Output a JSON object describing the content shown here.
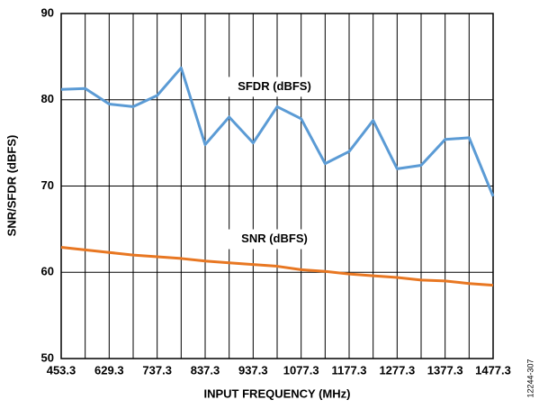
{
  "chart_data": {
    "type": "line",
    "x_label": "INPUT FREQUENCY (MHz)",
    "y_label": "SNR/SFDR (dBFS)",
    "figure_id": "12244-307",
    "categories": [
      "453.3",
      null,
      "629.3",
      null,
      "737.3",
      null,
      "837.3",
      null,
      "937.3",
      null,
      "1077.3",
      null,
      "1177.3",
      null,
      "1277.3",
      null,
      "1377.3",
      null,
      "1477.3"
    ],
    "series": [
      {
        "name": "SFDR (dBFS)",
        "color": "#5b9bd5",
        "values": [
          81.2,
          81.3,
          79.5,
          79.2,
          80.5,
          83.7,
          74.8,
          78.0,
          75.0,
          79.2,
          77.8,
          72.6,
          74.0,
          77.6,
          72.0,
          72.4,
          75.4,
          75.6,
          68.8
        ]
      },
      {
        "name": "SNR (dBFS)",
        "color": "#e87722",
        "values": [
          62.9,
          62.6,
          62.3,
          62.0,
          61.8,
          61.6,
          61.3,
          61.1,
          60.9,
          60.7,
          60.3,
          60.1,
          59.8,
          59.6,
          59.4,
          59.1,
          59.0,
          58.7,
          58.5
        ]
      }
    ],
    "label_positions": [
      {
        "series": 0,
        "index": 9
      },
      {
        "series": 1,
        "index": 9
      }
    ],
    "ylim": [
      50,
      90
    ],
    "yticks": [
      50,
      60,
      70,
      80,
      90
    ],
    "grid": true
  }
}
